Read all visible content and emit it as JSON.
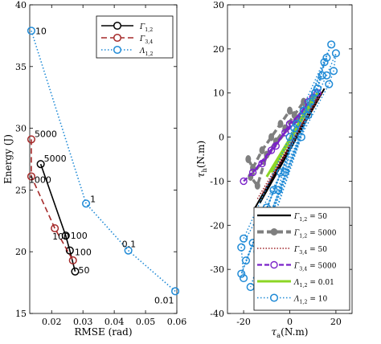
{
  "colors": {
    "black": "#000000",
    "darkred": "#a52a2a",
    "blue": "#1f8ad6",
    "gray": "#7f7f7f",
    "maroon": "#a0262c",
    "purple": "#7a22c8",
    "green": "#8cd624"
  },
  "chart_data": [
    {
      "type": "line",
      "title": "",
      "xlabel": "RMSE (rad)",
      "ylabel": "Energy (J)",
      "xlim": [
        0.013,
        0.06
      ],
      "ylim": [
        15,
        40
      ],
      "xticks": [
        0.02,
        0.03,
        0.04,
        0.05,
        0.06
      ],
      "xtick_labels": [
        "0.02",
        "0.03",
        "0.04",
        "0.05",
        "0.06"
      ],
      "yticks": [
        15,
        20,
        25,
        30,
        35,
        40
      ],
      "ytick_labels": [
        "15",
        "20",
        "25",
        "30",
        "35",
        "40"
      ],
      "legend_position": "top-right",
      "grid": false,
      "series": [
        {
          "name": "Γ1,2",
          "label_main": "Γ",
          "label_sub": "1,2",
          "color": "#000000",
          "dash": "solid",
          "x": [
            0.0165,
            0.0245,
            0.0258,
            0.0275
          ],
          "y": [
            27.1,
            21.3,
            20.1,
            18.4
          ],
          "point_labels": [
            "5000",
            "100",
            "100",
            "50"
          ]
        },
        {
          "name": "Γ3,4",
          "label_main": "Γ",
          "label_sub": "3,4",
          "color": "#a52a2a",
          "dash": "dashed",
          "x": [
            0.0135,
            0.0135,
            0.021,
            0.0268
          ],
          "y": [
            29.1,
            26.1,
            21.9,
            19.3
          ],
          "point_labels": [
            "5000",
            "1000",
            "100",
            ""
          ]
        },
        {
          "name": "Λ1,2",
          "label_main": "Λ",
          "label_sub": "1,2",
          "color": "#1f8ad6",
          "dash": "dotted",
          "x": [
            0.0135,
            0.031,
            0.0445,
            0.0595
          ],
          "y": [
            37.9,
            23.9,
            20.1,
            16.8
          ],
          "point_labels": [
            "10",
            "1",
            "0.1",
            "0.01"
          ]
        }
      ]
    },
    {
      "type": "scatter",
      "title": "",
      "xlabel_main": "τ",
      "xlabel_sub": "a",
      "xlabel_rest": "(N.m)",
      "ylabel_main": "τ",
      "ylabel_sub": "h",
      "ylabel_rest": "(N.m)",
      "xlim": [
        -27,
        27
      ],
      "ylim": [
        -40,
        30
      ],
      "xticks": [
        -20,
        0,
        20
      ],
      "xtick_labels": [
        "-20",
        "0",
        "20"
      ],
      "yticks": [
        -40,
        -30,
        -20,
        -10,
        0,
        10,
        20,
        30
      ],
      "ytick_labels": [
        "-40",
        "-30",
        "-20",
        "-10",
        "0",
        "10",
        "20",
        "30"
      ],
      "legend_position": "bottom-right",
      "grid": false,
      "series": [
        {
          "name": "Γ1,2 = 50",
          "label_main": "Γ",
          "label_sub": "1,2",
          "label_rest": " = 50",
          "color": "#000000",
          "style": "solid",
          "x": [
            -15,
            13,
            -13,
            15
          ],
          "y": [
            -16,
            10,
            -15,
            11
          ]
        },
        {
          "name": "Γ1,2 = 5000",
          "label_main": "Γ",
          "label_sub": "1,2",
          "label_rest": " = 5000",
          "color": "#7f7f7f",
          "style": "gray-dashed-dot",
          "x": [
            -18,
            -16,
            -12,
            -8,
            -4,
            0,
            4,
            8,
            10,
            -17,
            -14,
            -10,
            -6,
            -2,
            2,
            6
          ],
          "y": [
            -5,
            -7,
            -3,
            0,
            3,
            6,
            4,
            7,
            9,
            -9,
            -11,
            -4,
            -1,
            2,
            5,
            8
          ]
        },
        {
          "name": "Γ3,4 = 50",
          "label_main": "Γ",
          "label_sub": "3,4",
          "label_rest": " = 50",
          "color": "#a0262c",
          "style": "dotted",
          "x": [
            -14,
            12,
            -12,
            14
          ],
          "y": [
            -14,
            9,
            -13,
            10
          ]
        },
        {
          "name": "Γ3,4 = 5000",
          "label_main": "Γ",
          "label_sub": "3,4",
          "label_rest": " = 5000",
          "color": "#7a22c8",
          "style": "purple-dashed",
          "x": [
            -20,
            -12,
            -6,
            0,
            6,
            10,
            -16,
            -8,
            -2,
            4,
            8,
            12
          ],
          "y": [
            -10,
            -6,
            -2,
            3,
            6,
            9,
            -8,
            -3,
            1,
            4,
            8,
            10
          ]
        },
        {
          "name": "Λ1,2 = 0.01",
          "label_main": "Λ",
          "label_sub": "1,2",
          "label_rest": " = 0.01",
          "color": "#8cd624",
          "style": "green-solid",
          "x": [
            -10,
            12,
            -8,
            10
          ],
          "y": [
            -9,
            10,
            -8,
            9
          ]
        },
        {
          "name": "Λ1,2 = 10",
          "label_main": "Λ",
          "label_sub": "1,2",
          "label_rest": " = 10",
          "color": "#1f8ad6",
          "style": "dotted-circles",
          "x": [
            -20,
            18,
            -21,
            16,
            -17,
            14,
            -14,
            11,
            -11,
            8,
            -8,
            5,
            -5,
            2,
            -2,
            0,
            3,
            6,
            9,
            12,
            15,
            -19,
            -16,
            -13,
            -10,
            -7,
            -4,
            16,
            20,
            19,
            17,
            -21,
            -20
          ],
          "y": [
            -23,
            21,
            -31,
            18,
            -34,
            14,
            -26,
            10,
            -21,
            5,
            -18,
            0,
            -12,
            2,
            -8,
            0,
            3,
            6,
            8,
            11,
            17,
            -28,
            -24,
            -20,
            -16,
            -12,
            -8,
            14,
            19,
            15,
            12,
            -25,
            -32
          ]
        }
      ]
    }
  ]
}
